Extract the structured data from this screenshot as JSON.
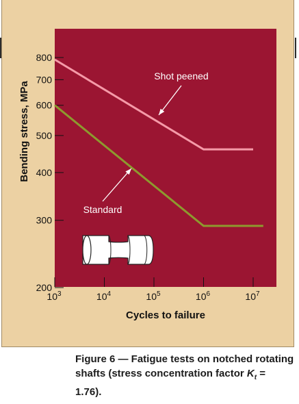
{
  "chart_data": {
    "type": "line",
    "xlabel": "Cycles to failure",
    "ylabel": "Bending stress, MPa",
    "xscale": "log",
    "yscale": "log",
    "xlim": [
      1000,
      20000000
    ],
    "ylim": [
      200,
      900
    ],
    "x_ticks": [
      {
        "value": 1000,
        "base": "10",
        "exp": "3"
      },
      {
        "value": 10000,
        "base": "10",
        "exp": "4"
      },
      {
        "value": 100000,
        "base": "10",
        "exp": "5"
      },
      {
        "value": 1000000,
        "base": "10",
        "exp": "6"
      },
      {
        "value": 10000000,
        "base": "10",
        "exp": "7"
      }
    ],
    "y_ticks": [
      200,
      300,
      400,
      500,
      600,
      700,
      800
    ],
    "series": [
      {
        "name": "Shot peened",
        "color": "#f59aa8",
        "x": [
          1000,
          1000000,
          10000000
        ],
        "y": [
          790,
          460,
          460
        ]
      },
      {
        "name": "Standard",
        "color": "#8d9a2e",
        "x": [
          1000,
          1000000,
          16000000
        ],
        "y": [
          600,
          290,
          290
        ]
      }
    ],
    "annotations": [
      {
        "text": "Shot peened",
        "series": 0
      },
      {
        "text": "Standard",
        "series": 1
      }
    ],
    "plot_background": "#9b1532",
    "inset_icon": "notched-shaft-icon"
  },
  "caption": {
    "prefix": "Figure 6 — Fatigue tests on notched rotating shafts (stress concentration factor ",
    "k_symbol": "K",
    "k_sub": "t",
    "suffix": " = 1.76)."
  }
}
